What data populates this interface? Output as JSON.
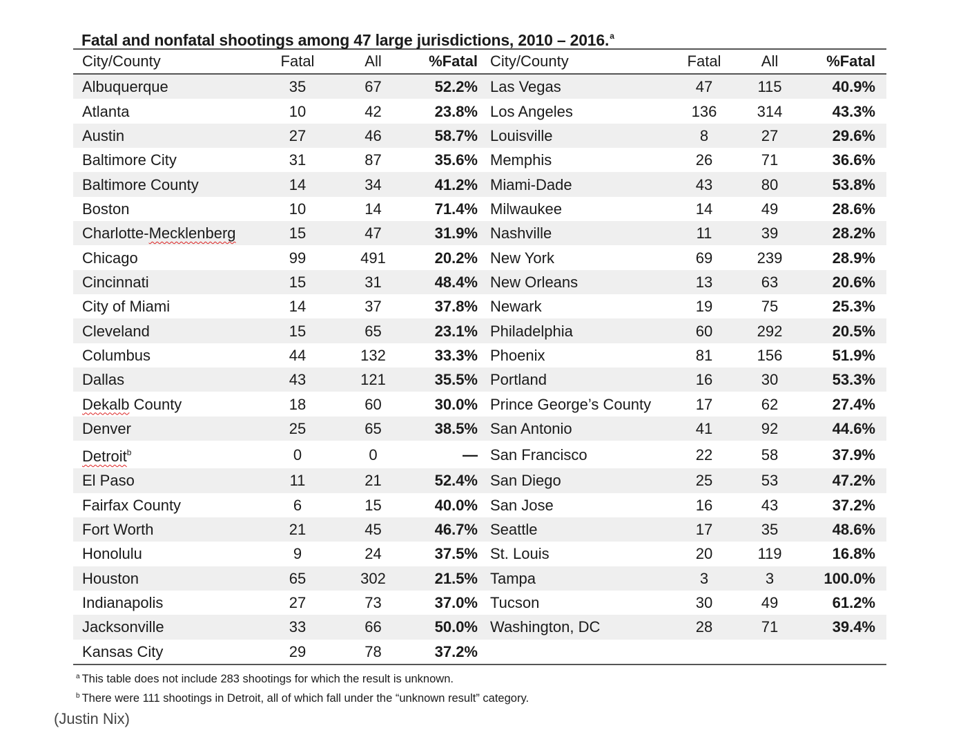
{
  "title": {
    "text": "Fatal and nonfatal shootings among 47 large jurisdictions, 2010 – 2016.",
    "footnote_marker": "a"
  },
  "table": {
    "headers": [
      "City/County",
      "Fatal",
      "All",
      "%Fatal",
      "City/County",
      "Fatal",
      "All",
      "%Fatal"
    ],
    "rows": [
      {
        "l": [
          "Albuquerque",
          "35",
          "67",
          "52.2%"
        ],
        "r": [
          "Las Vegas",
          "47",
          "115",
          "40.9%"
        ]
      },
      {
        "l": [
          "Atlanta",
          "10",
          "42",
          "23.8%"
        ],
        "r": [
          "Los Angeles",
          "136",
          "314",
          "43.3%"
        ]
      },
      {
        "l": [
          "Austin",
          "27",
          "46",
          "58.7%"
        ],
        "r": [
          "Louisville",
          "8",
          "27",
          "29.6%"
        ]
      },
      {
        "l": [
          "Baltimore City",
          "31",
          "87",
          "35.6%"
        ],
        "r": [
          "Memphis",
          "26",
          "71",
          "36.6%"
        ]
      },
      {
        "l": [
          "Baltimore County",
          "14",
          "34",
          "41.2%"
        ],
        "r": [
          "Miami-Dade",
          "43",
          "80",
          "53.8%"
        ]
      },
      {
        "l": [
          "Boston",
          "10",
          "14",
          "71.4%"
        ],
        "r": [
          "Milwaukee",
          "14",
          "49",
          "28.6%"
        ]
      },
      {
        "l": [
          "Charlotte-Mecklenberg",
          "15",
          "47",
          "31.9%"
        ],
        "r": [
          "Nashville",
          "11",
          "39",
          "28.2%"
        ]
      },
      {
        "l": [
          "Chicago",
          "99",
          "491",
          "20.2%"
        ],
        "r": [
          "New York",
          "69",
          "239",
          "28.9%"
        ]
      },
      {
        "l": [
          "Cincinnati",
          "15",
          "31",
          "48.4%"
        ],
        "r": [
          "New Orleans",
          "13",
          "63",
          "20.6%"
        ]
      },
      {
        "l": [
          "City of Miami",
          "14",
          "37",
          "37.8%"
        ],
        "r": [
          "Newark",
          "19",
          "75",
          "25.3%"
        ]
      },
      {
        "l": [
          "Cleveland",
          "15",
          "65",
          "23.1%"
        ],
        "r": [
          "Philadelphia",
          "60",
          "292",
          "20.5%"
        ]
      },
      {
        "l": [
          "Columbus",
          "44",
          "132",
          "33.3%"
        ],
        "r": [
          "Phoenix",
          "81",
          "156",
          "51.9%"
        ]
      },
      {
        "l": [
          "Dallas",
          "43",
          "121",
          "35.5%"
        ],
        "r": [
          "Portland",
          "16",
          "30",
          "53.3%"
        ]
      },
      {
        "l": [
          "Dekalb County",
          "18",
          "60",
          "30.0%"
        ],
        "r": [
          "Prince George’s County",
          "17",
          "62",
          "27.4%"
        ]
      },
      {
        "l": [
          "Denver",
          "25",
          "65",
          "38.5%"
        ],
        "r": [
          "San Antonio",
          "41",
          "92",
          "44.6%"
        ]
      },
      {
        "l": [
          "Detroit",
          "0",
          "0",
          "—"
        ],
        "r": [
          "San Francisco",
          "22",
          "58",
          "37.9%"
        ],
        "l_note": "b"
      },
      {
        "l": [
          "El Paso",
          "11",
          "21",
          "52.4%"
        ],
        "r": [
          "San Diego",
          "25",
          "53",
          "47.2%"
        ]
      },
      {
        "l": [
          "Fairfax County",
          "6",
          "15",
          "40.0%"
        ],
        "r": [
          "San Jose",
          "16",
          "43",
          "37.2%"
        ]
      },
      {
        "l": [
          "Fort Worth",
          "21",
          "45",
          "46.7%"
        ],
        "r": [
          "Seattle",
          "17",
          "35",
          "48.6%"
        ]
      },
      {
        "l": [
          "Honolulu",
          "9",
          "24",
          "37.5%"
        ],
        "r": [
          "St. Louis",
          "20",
          "119",
          "16.8%"
        ]
      },
      {
        "l": [
          "Houston",
          "65",
          "302",
          "21.5%"
        ],
        "r": [
          "Tampa",
          "3",
          "3",
          "100.0%"
        ]
      },
      {
        "l": [
          "Indianapolis",
          "27",
          "73",
          "37.0%"
        ],
        "r": [
          "Tucson",
          "30",
          "49",
          "61.2%"
        ]
      },
      {
        "l": [
          "Jacksonville",
          "33",
          "66",
          "50.0%"
        ],
        "r": [
          "Washington, DC",
          "28",
          "71",
          "39.4%"
        ]
      },
      {
        "l": [
          "Kansas City",
          "29",
          "78",
          "37.2%"
        ],
        "r": [
          "",
          "",
          "",
          ""
        ]
      }
    ]
  },
  "notes": [
    {
      "marker": "a",
      "text": "This table does not include 283 shootings for which the result is unknown."
    },
    {
      "marker": "b",
      "text": "There were 111 shootings in Detroit, all of which fall under the “unknown result” category."
    }
  ],
  "credit": "(Justin Nix)",
  "colors": {
    "stripe": "#efefef",
    "rule": "#555555",
    "spellcheck": "#dd2222"
  }
}
